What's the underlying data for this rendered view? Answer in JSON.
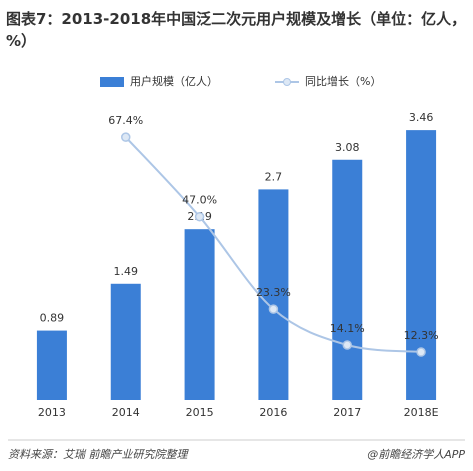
{
  "chart_data": {
    "type": "bar-line",
    "title": "图表7：2013-2018年中国泛二次元用户规模及增长（单位：亿人，%）",
    "categories": [
      "2013",
      "2014",
      "2015",
      "2016",
      "2017",
      "2018E"
    ],
    "series": [
      {
        "name": "用户规模（亿人）",
        "type": "bar",
        "color": "#3b7fd6",
        "values": [
          0.89,
          1.49,
          2.19,
          2.7,
          3.08,
          3.46
        ]
      },
      {
        "name": "同比增长（%）",
        "type": "line",
        "axis": "y2",
        "color": "#adc6e6",
        "values": [
          null,
          67.4,
          47.0,
          23.3,
          14.1,
          12.3
        ],
        "value_labels": [
          null,
          "67.4%",
          "47.0%",
          "23.3%",
          "14.1%",
          "12.3%"
        ]
      }
    ],
    "ylim": [
      0,
      4
    ],
    "y2lim": [
      0,
      80
    ],
    "source": "资料来源：艾瑞 前瞻产业研究院整理",
    "brand": "@前瞻经济学人APP"
  }
}
